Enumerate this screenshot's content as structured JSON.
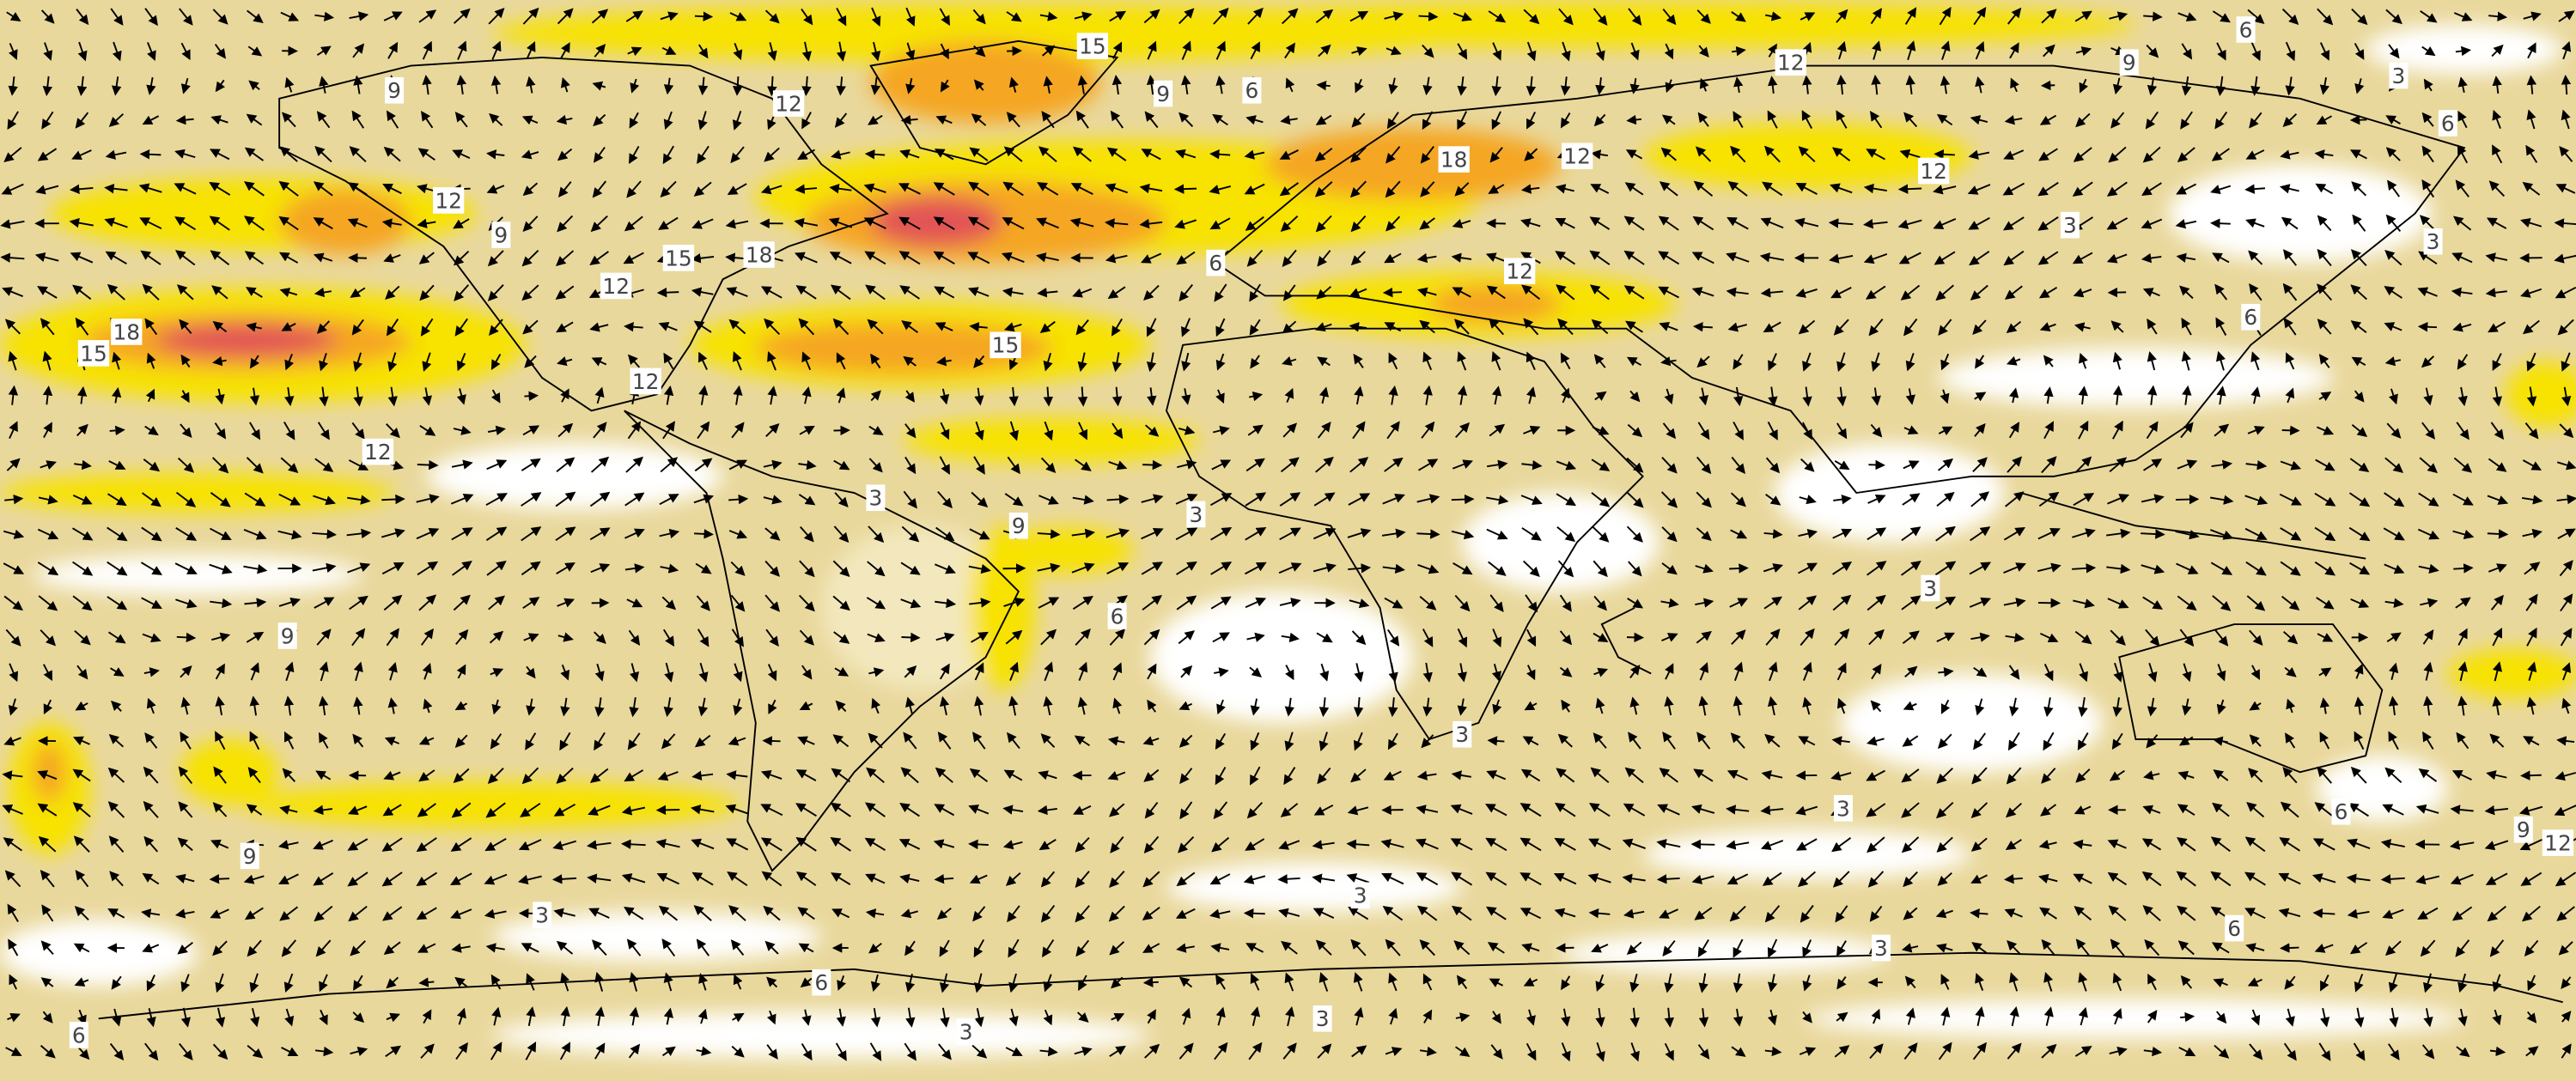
{
  "contour_labels": [
    15,
    9,
    6,
    12,
    9,
    12,
    9,
    6,
    3,
    6,
    12,
    9,
    15,
    18,
    12,
    18,
    15,
    12,
    12,
    15,
    18,
    12,
    12,
    3,
    3,
    6,
    12,
    6,
    3,
    9,
    3,
    6,
    3,
    9,
    3,
    3,
    6,
    9,
    12,
    9,
    3,
    3,
    6,
    3,
    6,
    3,
    3,
    6
  ]
}
